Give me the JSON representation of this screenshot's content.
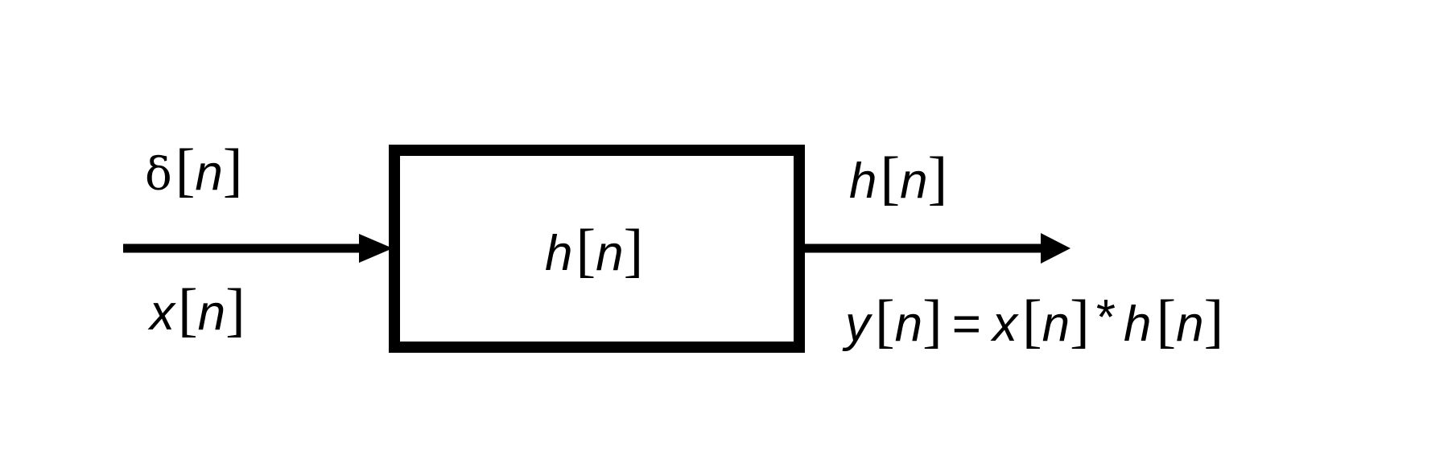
{
  "input": {
    "impulse_label": {
      "func": "δ",
      "arg": "n"
    },
    "signal_label": {
      "func": "x",
      "arg": "n"
    }
  },
  "system": {
    "label": {
      "func": "h",
      "arg": "n"
    }
  },
  "output": {
    "impulse_response_label": {
      "func": "h",
      "arg": "n"
    },
    "convolution_label": {
      "lhs_func": "y",
      "lhs_arg": "n",
      "equals": "=",
      "x_func": "x",
      "x_arg": "n",
      "operator": "*",
      "h_func": "h",
      "h_arg": "n"
    }
  },
  "colors": {
    "stroke": "#000000",
    "background": "#ffffff"
  }
}
